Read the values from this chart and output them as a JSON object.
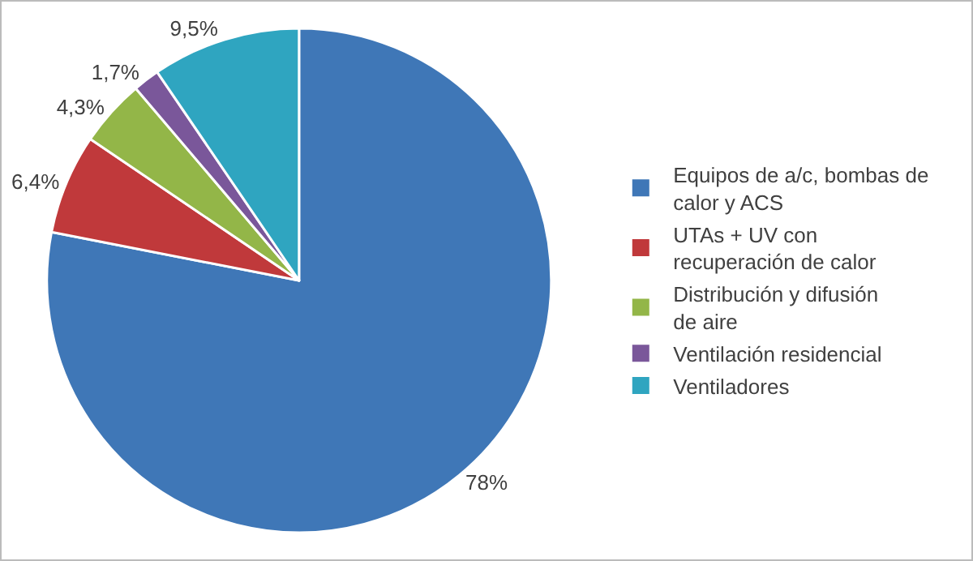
{
  "chart_data": {
    "type": "pie",
    "categories": [
      "Equipos de a/c, bombas de calor y ACS",
      "UTAs + UV con recuperación de calor",
      "Distribución y difusión de aire",
      "Ventilación residencial",
      "Ventiladores"
    ],
    "values": [
      78,
      6.4,
      4.3,
      1.7,
      9.5
    ],
    "value_labels": [
      "78%",
      "6,4%",
      "4,3%",
      "1,7%",
      "9,5%"
    ],
    "colors": [
      "#3f77b7",
      "#c0393b",
      "#93b648",
      "#7a579a",
      "#2fa5c0"
    ],
    "legend": "right"
  }
}
